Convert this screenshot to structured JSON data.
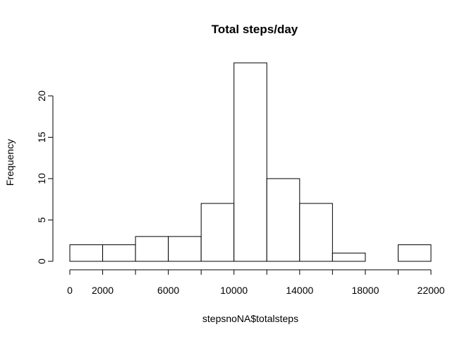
{
  "chart_data": {
    "type": "bar",
    "title": "Total steps/day",
    "xlabel": "stepsnoNA$totalsteps",
    "ylabel": "Frequency",
    "bin_edges": [
      0,
      2000,
      4000,
      6000,
      8000,
      10000,
      12000,
      14000,
      16000,
      18000,
      20000,
      22000
    ],
    "values": [
      2,
      2,
      3,
      3,
      7,
      24,
      10,
      7,
      1,
      0,
      2
    ],
    "x_ticks": [
      0,
      2000,
      6000,
      10000,
      14000,
      18000,
      22000
    ],
    "y_ticks": [
      0,
      5,
      10,
      15,
      20
    ],
    "xlim": [
      0,
      22000
    ],
    "ylim": [
      0,
      24
    ],
    "grid": false,
    "bar_fill": "#ffffff",
    "bar_stroke": "#000000"
  }
}
